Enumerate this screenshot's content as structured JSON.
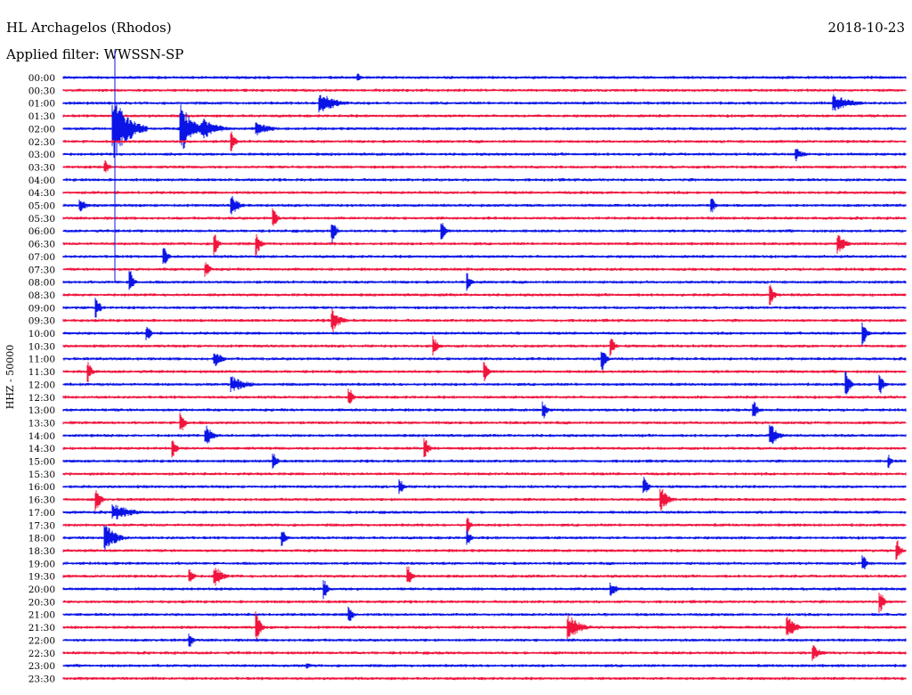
{
  "header": {
    "station": "HL Archagelos (Rhodos)",
    "date": "2018-10-23",
    "filter_label": "Applied filter: WWSSN-SP"
  },
  "chart_data": {
    "type": "line",
    "title": "HL Archagelos (Rhodos)",
    "subtitle": "Applied filter: WWSSN-SP",
    "ylabel": "HHZ - 50000",
    "xlabel": "",
    "grid": false,
    "legend": "none",
    "colors": {
      "even_row": "#0a14e6",
      "odd_row": "#f0143c"
    },
    "categories": [
      "00:00",
      "00:30",
      "01:00",
      "01:30",
      "02:00",
      "02:30",
      "03:00",
      "03:30",
      "04:00",
      "04:30",
      "05:00",
      "05:30",
      "06:00",
      "06:30",
      "07:00",
      "07:30",
      "08:00",
      "08:30",
      "09:00",
      "09:30",
      "10:00",
      "10:30",
      "11:00",
      "11:30",
      "12:00",
      "12:30",
      "13:00",
      "13:30",
      "14:00",
      "14:30",
      "15:00",
      "15:30",
      "16:00",
      "16:30",
      "17:00",
      "17:30",
      "18:00",
      "18:30",
      "19:00",
      "19:30",
      "20:00",
      "20:30",
      "21:00",
      "21:30",
      "22:00",
      "22:30",
      "23:00",
      "23:30"
    ],
    "events": [
      {
        "row": 0,
        "pos": 0.35,
        "amp": 5,
        "dur": 0.01
      },
      {
        "row": 2,
        "pos": 0.305,
        "amp": 14,
        "dur": 0.04
      },
      {
        "row": 2,
        "pos": 0.915,
        "amp": 10,
        "dur": 0.05
      },
      {
        "row": 4,
        "pos": 0.06,
        "amp": 40,
        "dur": 0.04
      },
      {
        "row": 4,
        "pos": 0.14,
        "amp": 30,
        "dur": 0.03
      },
      {
        "row": 4,
        "pos": 0.165,
        "amp": 14,
        "dur": 0.04
      },
      {
        "row": 4,
        "pos": 0.23,
        "amp": 8,
        "dur": 0.04
      },
      {
        "row": 5,
        "pos": 0.2,
        "amp": 12,
        "dur": 0.01
      },
      {
        "row": 6,
        "pos": 0.87,
        "amp": 8,
        "dur": 0.02
      },
      {
        "row": 7,
        "pos": 0.05,
        "amp": 10,
        "dur": 0.01
      },
      {
        "row": 10,
        "pos": 0.02,
        "amp": 8,
        "dur": 0.02
      },
      {
        "row": 10,
        "pos": 0.2,
        "amp": 12,
        "dur": 0.02
      },
      {
        "row": 10,
        "pos": 0.77,
        "amp": 10,
        "dur": 0.01
      },
      {
        "row": 11,
        "pos": 0.25,
        "amp": 12,
        "dur": 0.01
      },
      {
        "row": 12,
        "pos": 0.32,
        "amp": 14,
        "dur": 0.01
      },
      {
        "row": 12,
        "pos": 0.45,
        "amp": 12,
        "dur": 0.01
      },
      {
        "row": 13,
        "pos": 0.18,
        "amp": 14,
        "dur": 0.01
      },
      {
        "row": 13,
        "pos": 0.23,
        "amp": 14,
        "dur": 0.01
      },
      {
        "row": 13,
        "pos": 0.92,
        "amp": 12,
        "dur": 0.02
      },
      {
        "row": 14,
        "pos": 0.12,
        "amp": 12,
        "dur": 0.01
      },
      {
        "row": 15,
        "pos": 0.17,
        "amp": 10,
        "dur": 0.01
      },
      {
        "row": 16,
        "pos": 0.08,
        "amp": 14,
        "dur": 0.01
      },
      {
        "row": 16,
        "pos": 0.48,
        "amp": 10,
        "dur": 0.01
      },
      {
        "row": 17,
        "pos": 0.84,
        "amp": 12,
        "dur": 0.01
      },
      {
        "row": 18,
        "pos": 0.04,
        "amp": 12,
        "dur": 0.01
      },
      {
        "row": 19,
        "pos": 0.32,
        "amp": 14,
        "dur": 0.02
      },
      {
        "row": 20,
        "pos": 0.1,
        "amp": 10,
        "dur": 0.01
      },
      {
        "row": 20,
        "pos": 0.95,
        "amp": 14,
        "dur": 0.01
      },
      {
        "row": 21,
        "pos": 0.44,
        "amp": 12,
        "dur": 0.01
      },
      {
        "row": 21,
        "pos": 0.65,
        "amp": 14,
        "dur": 0.01
      },
      {
        "row": 22,
        "pos": 0.18,
        "amp": 10,
        "dur": 0.02
      },
      {
        "row": 22,
        "pos": 0.64,
        "amp": 14,
        "dur": 0.01
      },
      {
        "row": 23,
        "pos": 0.03,
        "amp": 12,
        "dur": 0.01
      },
      {
        "row": 23,
        "pos": 0.5,
        "amp": 14,
        "dur": 0.01
      },
      {
        "row": 24,
        "pos": 0.2,
        "amp": 10,
        "dur": 0.04
      },
      {
        "row": 24,
        "pos": 0.93,
        "amp": 16,
        "dur": 0.01
      },
      {
        "row": 24,
        "pos": 0.97,
        "amp": 12,
        "dur": 0.01
      },
      {
        "row": 25,
        "pos": 0.34,
        "amp": 12,
        "dur": 0.01
      },
      {
        "row": 26,
        "pos": 0.57,
        "amp": 12,
        "dur": 0.01
      },
      {
        "row": 26,
        "pos": 0.82,
        "amp": 12,
        "dur": 0.01
      },
      {
        "row": 27,
        "pos": 0.14,
        "amp": 14,
        "dur": 0.01
      },
      {
        "row": 28,
        "pos": 0.17,
        "amp": 12,
        "dur": 0.02
      },
      {
        "row": 28,
        "pos": 0.84,
        "amp": 14,
        "dur": 0.02
      },
      {
        "row": 29,
        "pos": 0.13,
        "amp": 12,
        "dur": 0.01
      },
      {
        "row": 29,
        "pos": 0.43,
        "amp": 12,
        "dur": 0.01
      },
      {
        "row": 30,
        "pos": 0.25,
        "amp": 10,
        "dur": 0.01
      },
      {
        "row": 30,
        "pos": 0.98,
        "amp": 8,
        "dur": 0.01
      },
      {
        "row": 32,
        "pos": 0.4,
        "amp": 10,
        "dur": 0.01
      },
      {
        "row": 32,
        "pos": 0.69,
        "amp": 12,
        "dur": 0.01
      },
      {
        "row": 33,
        "pos": 0.04,
        "amp": 16,
        "dur": 0.01
      },
      {
        "row": 33,
        "pos": 0.71,
        "amp": 14,
        "dur": 0.02
      },
      {
        "row": 34,
        "pos": 0.06,
        "amp": 10,
        "dur": 0.05
      },
      {
        "row": 35,
        "pos": 0.48,
        "amp": 10,
        "dur": 0.01
      },
      {
        "row": 36,
        "pos": 0.05,
        "amp": 16,
        "dur": 0.03
      },
      {
        "row": 36,
        "pos": 0.26,
        "amp": 12,
        "dur": 0.01
      },
      {
        "row": 36,
        "pos": 0.48,
        "amp": 10,
        "dur": 0.01
      },
      {
        "row": 37,
        "pos": 0.99,
        "amp": 14,
        "dur": 0.01
      },
      {
        "row": 38,
        "pos": 0.95,
        "amp": 10,
        "dur": 0.01
      },
      {
        "row": 39,
        "pos": 0.15,
        "amp": 12,
        "dur": 0.01
      },
      {
        "row": 39,
        "pos": 0.18,
        "amp": 14,
        "dur": 0.02
      },
      {
        "row": 39,
        "pos": 0.41,
        "amp": 12,
        "dur": 0.01
      },
      {
        "row": 40,
        "pos": 0.31,
        "amp": 12,
        "dur": 0.01
      },
      {
        "row": 40,
        "pos": 0.65,
        "amp": 8,
        "dur": 0.02
      },
      {
        "row": 41,
        "pos": 0.97,
        "amp": 14,
        "dur": 0.01
      },
      {
        "row": 42,
        "pos": 0.34,
        "amp": 10,
        "dur": 0.01
      },
      {
        "row": 43,
        "pos": 0.23,
        "amp": 18,
        "dur": 0.01
      },
      {
        "row": 43,
        "pos": 0.6,
        "amp": 16,
        "dur": 0.03
      },
      {
        "row": 43,
        "pos": 0.86,
        "amp": 14,
        "dur": 0.02
      },
      {
        "row": 44,
        "pos": 0.15,
        "amp": 10,
        "dur": 0.01
      },
      {
        "row": 45,
        "pos": 0.89,
        "amp": 10,
        "dur": 0.02
      },
      {
        "row": 46,
        "pos": 0.29,
        "amp": 4,
        "dur": 0.01
      }
    ]
  }
}
